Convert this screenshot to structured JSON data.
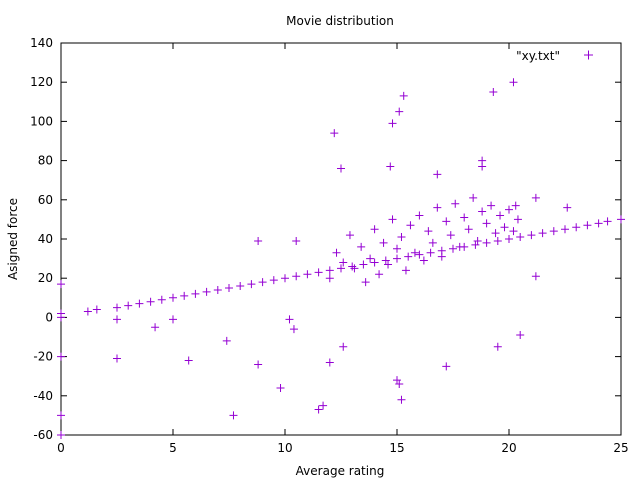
{
  "chart_data": {
    "type": "scatter",
    "title": "Movie distribution",
    "xlabel": "Average rating",
    "ylabel": "Asigned force",
    "xlim": [
      0,
      25
    ],
    "ylim": [
      -60,
      140
    ],
    "xticks": [
      0,
      5,
      10,
      15,
      20,
      25
    ],
    "yticks": [
      -60,
      -40,
      -20,
      0,
      20,
      40,
      60,
      80,
      100,
      120,
      140
    ],
    "grid": false,
    "legend_position": "top-right",
    "marker": "+",
    "series": [
      {
        "name": "\"xy.txt\"",
        "color": "#9400d3",
        "points": [
          [
            0,
            0
          ],
          [
            0,
            -20
          ],
          [
            0,
            -50
          ],
          [
            0,
            -60
          ],
          [
            0,
            17
          ],
          [
            0,
            2
          ],
          [
            1.2,
            3
          ],
          [
            1.6,
            4
          ],
          [
            2.5,
            5
          ],
          [
            3,
            6
          ],
          [
            3.5,
            7
          ],
          [
            4,
            8
          ],
          [
            4.5,
            9
          ],
          [
            5,
            10
          ],
          [
            5.5,
            11
          ],
          [
            6,
            12
          ],
          [
            6.5,
            13
          ],
          [
            7,
            14
          ],
          [
            7.5,
            15
          ],
          [
            8,
            16
          ],
          [
            8.5,
            17
          ],
          [
            9,
            18
          ],
          [
            9.5,
            19
          ],
          [
            10,
            20
          ],
          [
            10.5,
            21
          ],
          [
            11,
            22
          ],
          [
            11.5,
            23
          ],
          [
            12,
            24
          ],
          [
            12.5,
            25
          ],
          [
            13,
            26
          ],
          [
            13.5,
            27
          ],
          [
            14,
            28
          ],
          [
            14.5,
            29
          ],
          [
            15,
            30
          ],
          [
            15.5,
            31
          ],
          [
            16,
            32
          ],
          [
            16.5,
            33
          ],
          [
            17,
            34
          ],
          [
            17.5,
            35
          ],
          [
            18,
            36
          ],
          [
            18.5,
            37
          ],
          [
            19,
            38
          ],
          [
            19.5,
            39
          ],
          [
            20,
            40
          ],
          [
            20.5,
            41
          ],
          [
            21,
            42
          ],
          [
            21.5,
            43
          ],
          [
            22,
            44
          ],
          [
            22.5,
            45
          ],
          [
            23,
            46
          ],
          [
            23.5,
            47
          ],
          [
            24,
            48
          ],
          [
            25,
            50
          ],
          [
            2.5,
            -21
          ],
          [
            2.5,
            -1
          ],
          [
            4.2,
            -5
          ],
          [
            5,
            -1
          ],
          [
            5.7,
            -22
          ],
          [
            7.4,
            -12
          ],
          [
            7.7,
            -50
          ],
          [
            8.8,
            -24
          ],
          [
            9.8,
            -36
          ],
          [
            10.2,
            -1
          ],
          [
            10.4,
            -6
          ],
          [
            11.5,
            -47
          ],
          [
            11.7,
            -45
          ],
          [
            12,
            -23
          ],
          [
            12.6,
            -15
          ],
          [
            15,
            -32
          ],
          [
            15.1,
            -34
          ],
          [
            15.2,
            -42
          ],
          [
            17.2,
            -25
          ],
          [
            19.5,
            -15
          ],
          [
            20.5,
            -9
          ],
          [
            21.2,
            21
          ],
          [
            12.2,
            94
          ],
          [
            12.5,
            76
          ],
          [
            14.8,
            99
          ],
          [
            15.1,
            105
          ],
          [
            15.3,
            113
          ],
          [
            14.7,
            77
          ],
          [
            16.8,
            73
          ],
          [
            19.3,
            115
          ],
          [
            20.2,
            120
          ],
          [
            18.8,
            80
          ],
          [
            18.8,
            77
          ],
          [
            20.3,
            57
          ],
          [
            21.2,
            61
          ],
          [
            22.6,
            56
          ],
          [
            24.4,
            49
          ],
          [
            8.8,
            39
          ],
          [
            10.5,
            39
          ],
          [
            12.0,
            20
          ],
          [
            12.3,
            33
          ],
          [
            12.6,
            28
          ],
          [
            12.9,
            42
          ],
          [
            13.1,
            25
          ],
          [
            13.4,
            36
          ],
          [
            13.6,
            18
          ],
          [
            13.8,
            30
          ],
          [
            14.0,
            45
          ],
          [
            14.2,
            22
          ],
          [
            14.4,
            38
          ],
          [
            14.6,
            27
          ],
          [
            14.8,
            50
          ],
          [
            15.0,
            35
          ],
          [
            15.2,
            41
          ],
          [
            15.4,
            24
          ],
          [
            15.6,
            47
          ],
          [
            15.8,
            33
          ],
          [
            16.0,
            52
          ],
          [
            16.2,
            29
          ],
          [
            16.4,
            44
          ],
          [
            16.6,
            38
          ],
          [
            16.8,
            56
          ],
          [
            17.0,
            31
          ],
          [
            17.2,
            49
          ],
          [
            17.4,
            42
          ],
          [
            17.6,
            58
          ],
          [
            17.8,
            36
          ],
          [
            18.0,
            51
          ],
          [
            18.2,
            45
          ],
          [
            18.4,
            61
          ],
          [
            18.6,
            39
          ],
          [
            18.8,
            54
          ],
          [
            19.0,
            48
          ],
          [
            19.2,
            57
          ],
          [
            19.4,
            43
          ],
          [
            19.6,
            52
          ],
          [
            19.8,
            46
          ],
          [
            20.0,
            55
          ],
          [
            20.2,
            44
          ],
          [
            20.4,
            50
          ]
        ]
      }
    ]
  }
}
